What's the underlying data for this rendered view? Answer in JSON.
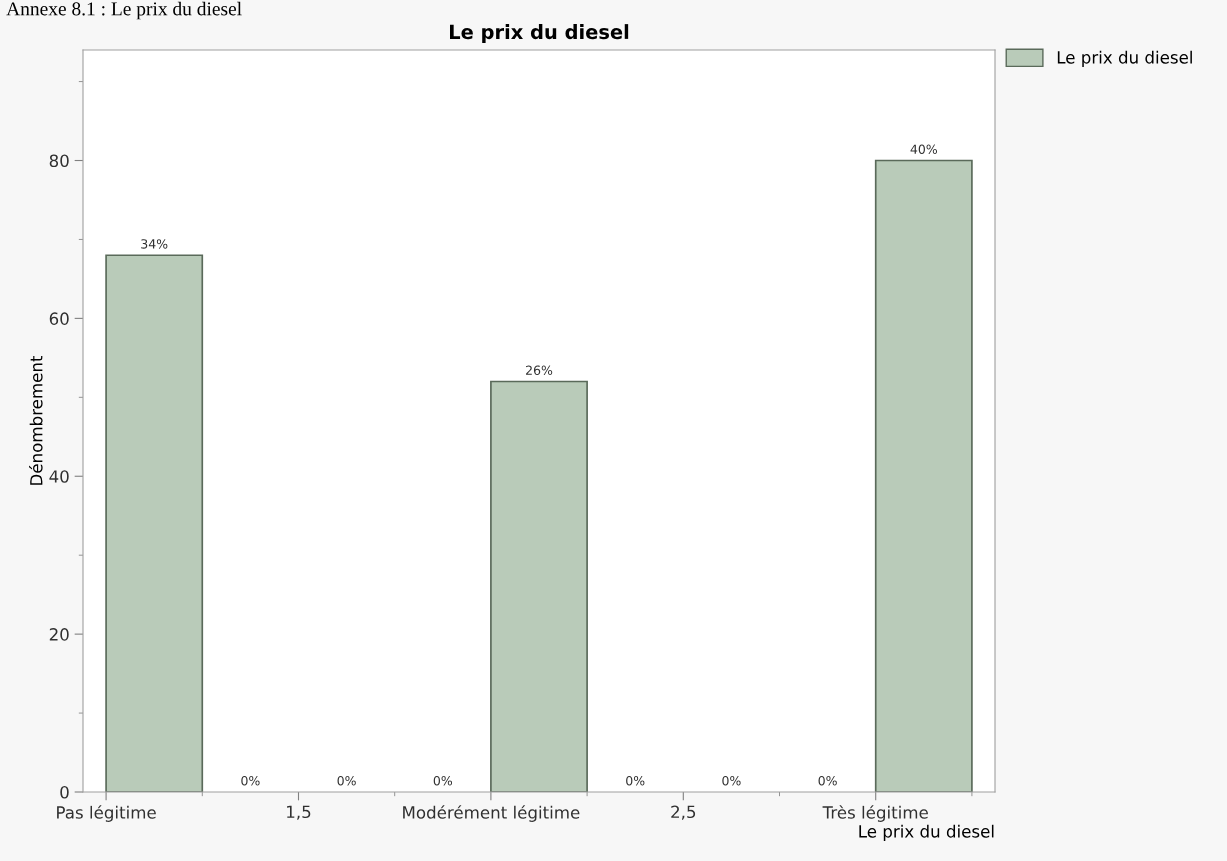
{
  "chart_data": {
    "type": "histogram",
    "title": "Le prix du diesel",
    "xlabel": "Le prix du diesel",
    "ylabel": "Dénombrement",
    "annotations": [
      "Annexe 8.1 : Le prix du diesel",
      {
        "text": "34%",
        "x": 1.125,
        "y": 68
      },
      {
        "text": "0%",
        "x": 1.375,
        "y": 0
      },
      {
        "text": "0%",
        "x": 1.625,
        "y": 0
      },
      {
        "text": "0%",
        "x": 1.875,
        "y": 0
      },
      {
        "text": "26%",
        "x": 2.125,
        "y": 52
      },
      {
        "text": "0%",
        "x": 2.375,
        "y": 0
      },
      {
        "text": "0%",
        "x": 2.625,
        "y": 0
      },
      {
        "text": "0%",
        "x": 2.875,
        "y": 0
      },
      {
        "text": "40%",
        "x": 3.125,
        "y": 80
      }
    ],
    "bins": [
      1,
      1.25,
      1.5,
      1.75,
      2,
      2.25,
      2.5,
      2.75,
      3,
      3.25
    ],
    "series": [
      {
        "name": "Le prix du diesel",
        "color": "#b9cbb9",
        "values": [
          68,
          0,
          0,
          0,
          52,
          0,
          0,
          0,
          80
        ]
      }
    ],
    "xlim": [
      0.94,
      3.31
    ],
    "xticks": [
      {
        "value": 1,
        "label": "Pas légitime"
      },
      {
        "value": 1.25,
        "label": null
      },
      {
        "value": 1.5,
        "label": "1,5"
      },
      {
        "value": 1.75,
        "label": null
      },
      {
        "value": 2,
        "label": "Modérément légitime"
      },
      {
        "value": 2.25,
        "label": null
      },
      {
        "value": 2.5,
        "label": "2,5"
      },
      {
        "value": 2.75,
        "label": null
      },
      {
        "value": 3,
        "label": "Très légitime"
      },
      {
        "value": 3.25,
        "label": null
      }
    ],
    "ylim": [
      0,
      94
    ],
    "yticks": [
      0,
      {
        "value": 10,
        "label": null
      },
      20,
      {
        "value": 30,
        "label": null
      },
      40,
      {
        "value": 50,
        "label": null
      },
      60,
      {
        "value": 70,
        "label": null
      },
      80,
      {
        "value": 90,
        "label": null
      }
    ],
    "grid": false,
    "legend": "top right"
  }
}
